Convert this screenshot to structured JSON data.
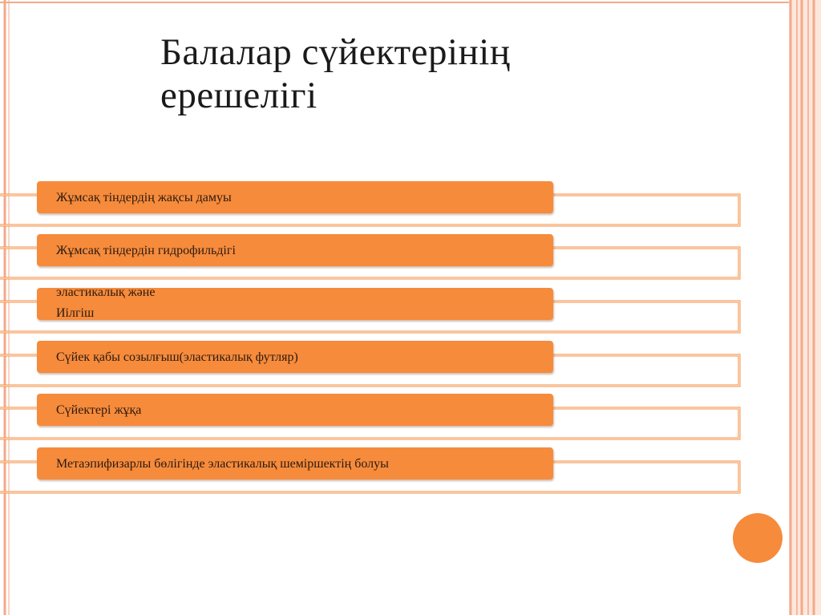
{
  "slide": {
    "title_line1": "Балалар сүйектерінің",
    "title_line2": "ерешелігі",
    "accent_color": "#f68b3c",
    "frame_color": "#f4a98a"
  },
  "items": [
    {
      "label": "Жұмсақ тіндердің жақсы дамуы"
    },
    {
      "label": "Жұмсақ тіндердін гидрофильдігі"
    },
    {
      "label_line1": "эластикалық және",
      "label_line2": "Иілгіш"
    },
    {
      "label": "Сүйек қабы созылғыш(эластикалық футляр)"
    },
    {
      "label": "Сүйектері жұқа"
    },
    {
      "label": "Метаэпифизарлы бөлігінде  эластикалық шеміршектің болуы"
    }
  ]
}
